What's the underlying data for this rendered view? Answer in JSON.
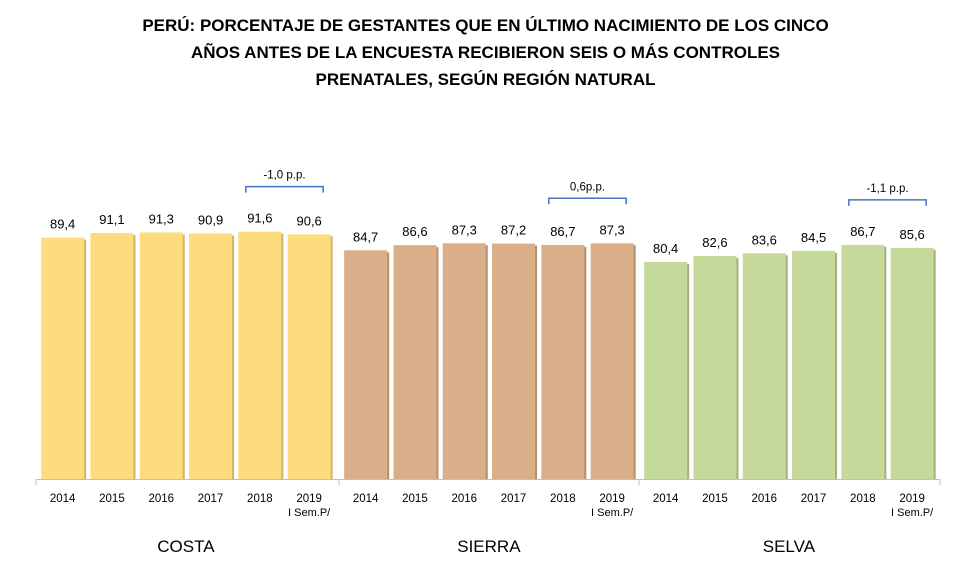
{
  "title_lines": [
    "PERÚ: PORCENTAJE DE GESTANTES QUE EN ÚLTIMO NACIMIENTO DE LOS CINCO",
    "AÑOS ANTES DE LA ENCUESTA RECIBIERON SEIS O MÁS CONTROLES",
    "PRENATALES, SEGÚN REGIÓN NATURAL"
  ],
  "chart_data": {
    "type": "bar",
    "title": "PERÚ: PORCENTAJE DE GESTANTES QUE EN ÚLTIMO NACIMIENTO DE LOS CINCO AÑOS ANTES DE LA ENCUESTA RECIBIERON SEIS O MÁS CONTROLES PRENATALES, SEGÚN REGIÓN NATURAL",
    "categories": [
      "2014",
      "2015",
      "2016",
      "2017",
      "2018",
      "2019"
    ],
    "category_sublabels": [
      "",
      "",
      "",
      "",
      "",
      "I Sem.P/"
    ],
    "ylim": [
      0,
      100
    ],
    "grid": false,
    "groups": [
      {
        "name": "COSTA",
        "color": "#fcdc7c",
        "values": [
          89.4,
          91.1,
          91.3,
          90.9,
          91.6,
          90.6
        ],
        "value_labels": [
          "89,4",
          "91,1",
          "91,3",
          "90,9",
          "91,6",
          "90,6"
        ],
        "annotation": "-1,0 p.p."
      },
      {
        "name": "SIERRA",
        "color": "#d9ae88",
        "values": [
          84.7,
          86.6,
          87.3,
          87.2,
          86.7,
          87.3
        ],
        "value_labels": [
          "84,7",
          "86,6",
          "87,3",
          "87,2",
          "86,7",
          "87,3"
        ],
        "annotation": "0,6p.p."
      },
      {
        "name": "SELVA",
        "color": "#c4d99a",
        "values": [
          80.4,
          82.6,
          83.6,
          84.5,
          86.7,
          85.6
        ],
        "value_labels": [
          "80,4",
          "82,6",
          "83,6",
          "84,5",
          "86,7",
          "85,6"
        ],
        "annotation": "-1,1 p.p."
      }
    ]
  }
}
